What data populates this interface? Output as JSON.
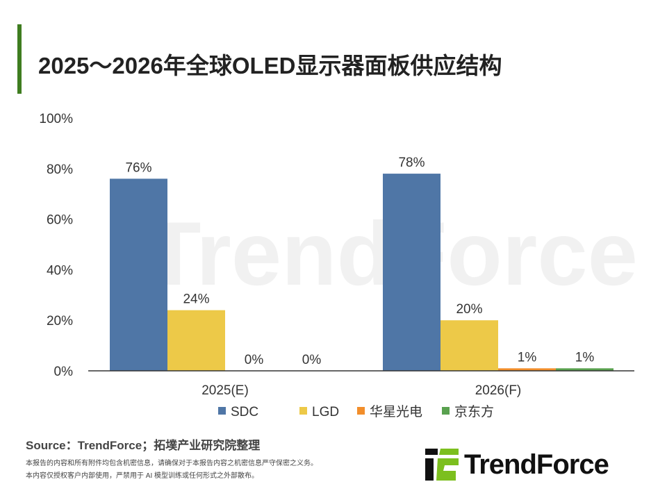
{
  "title": "2025～2026年全球OLED显示器面板供应结构",
  "chart_data": {
    "type": "bar",
    "title": "2025～2026年全球OLED显示器面板供应结构",
    "categories": [
      "2025(E)",
      "2026(F)"
    ],
    "series": [
      {
        "name": "SDC",
        "values": [
          76,
          78
        ],
        "color": "#4f76a6"
      },
      {
        "name": "LGD",
        "values": [
          24,
          20
        ],
        "color": "#edc948"
      },
      {
        "name": "华星光电",
        "values": [
          0,
          1
        ],
        "color": "#f28e2b"
      },
      {
        "name": "京东方",
        "values": [
          0,
          1
        ],
        "color": "#59a14f"
      }
    ],
    "ylim": [
      0,
      100
    ],
    "yticks": [
      0,
      20,
      40,
      60,
      80,
      100
    ],
    "ytick_labels": [
      "0%",
      "20%",
      "40%",
      "60%",
      "80%",
      "100%"
    ],
    "data_labels": [
      [
        "76%",
        "78%"
      ],
      [
        "24%",
        "20%"
      ],
      [
        "0%",
        "1%"
      ],
      [
        "0%",
        "1%"
      ]
    ],
    "legend": "bottom",
    "grid": false
  },
  "source": "Source：TrendForce；拓墣产业研究院整理",
  "notes": [
    "本报告的内容和所有附件均包含机密信息，请确保对于本报告内容之机密信息严守保密之义务。",
    "本内容仅授权客户内部使用，严禁用于 AI 模型训练或任何形式之外部散布。"
  ],
  "logo_text": "TrendForce",
  "watermark": "TrendForce"
}
